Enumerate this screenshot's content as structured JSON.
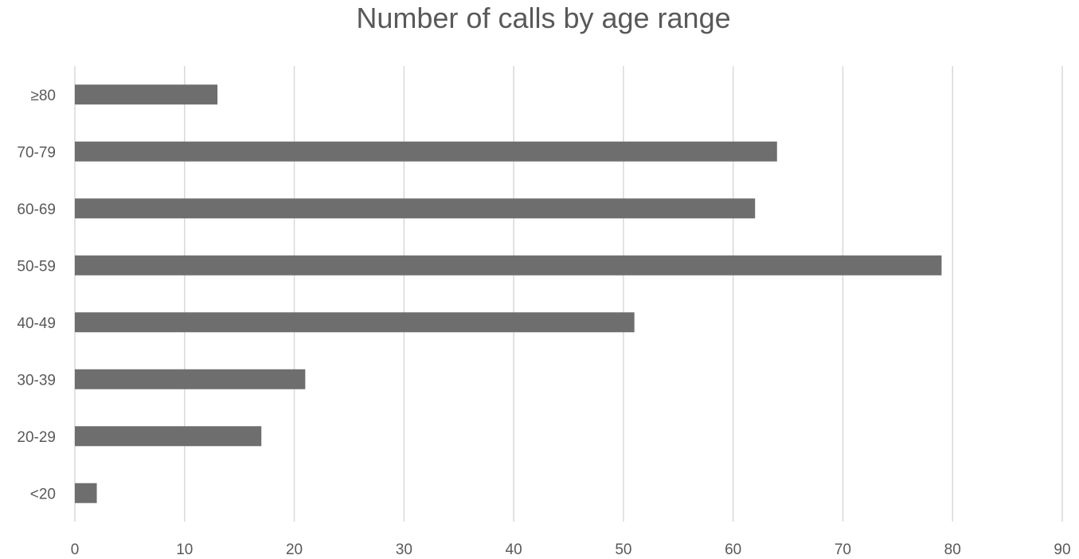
{
  "chart_data": {
    "type": "bar",
    "orientation": "horizontal",
    "title": "Number of calls by age range",
    "xlabel": "",
    "ylabel": "",
    "categories": [
      "≥80",
      "70-79",
      "60-69",
      "50-59",
      "40-49",
      "30-39",
      "20-29",
      "<20"
    ],
    "values": [
      13,
      64,
      62,
      79,
      51,
      21,
      17,
      2
    ],
    "xlim": [
      0,
      90
    ],
    "xticks": [
      "0",
      "10",
      "20",
      "30",
      "40",
      "50",
      "60",
      "70",
      "80",
      "90"
    ],
    "grid": true,
    "legend": "none",
    "colors": {
      "bar": "#6e6e6e",
      "grid": "#d9d9d9",
      "text": "#595959"
    }
  }
}
